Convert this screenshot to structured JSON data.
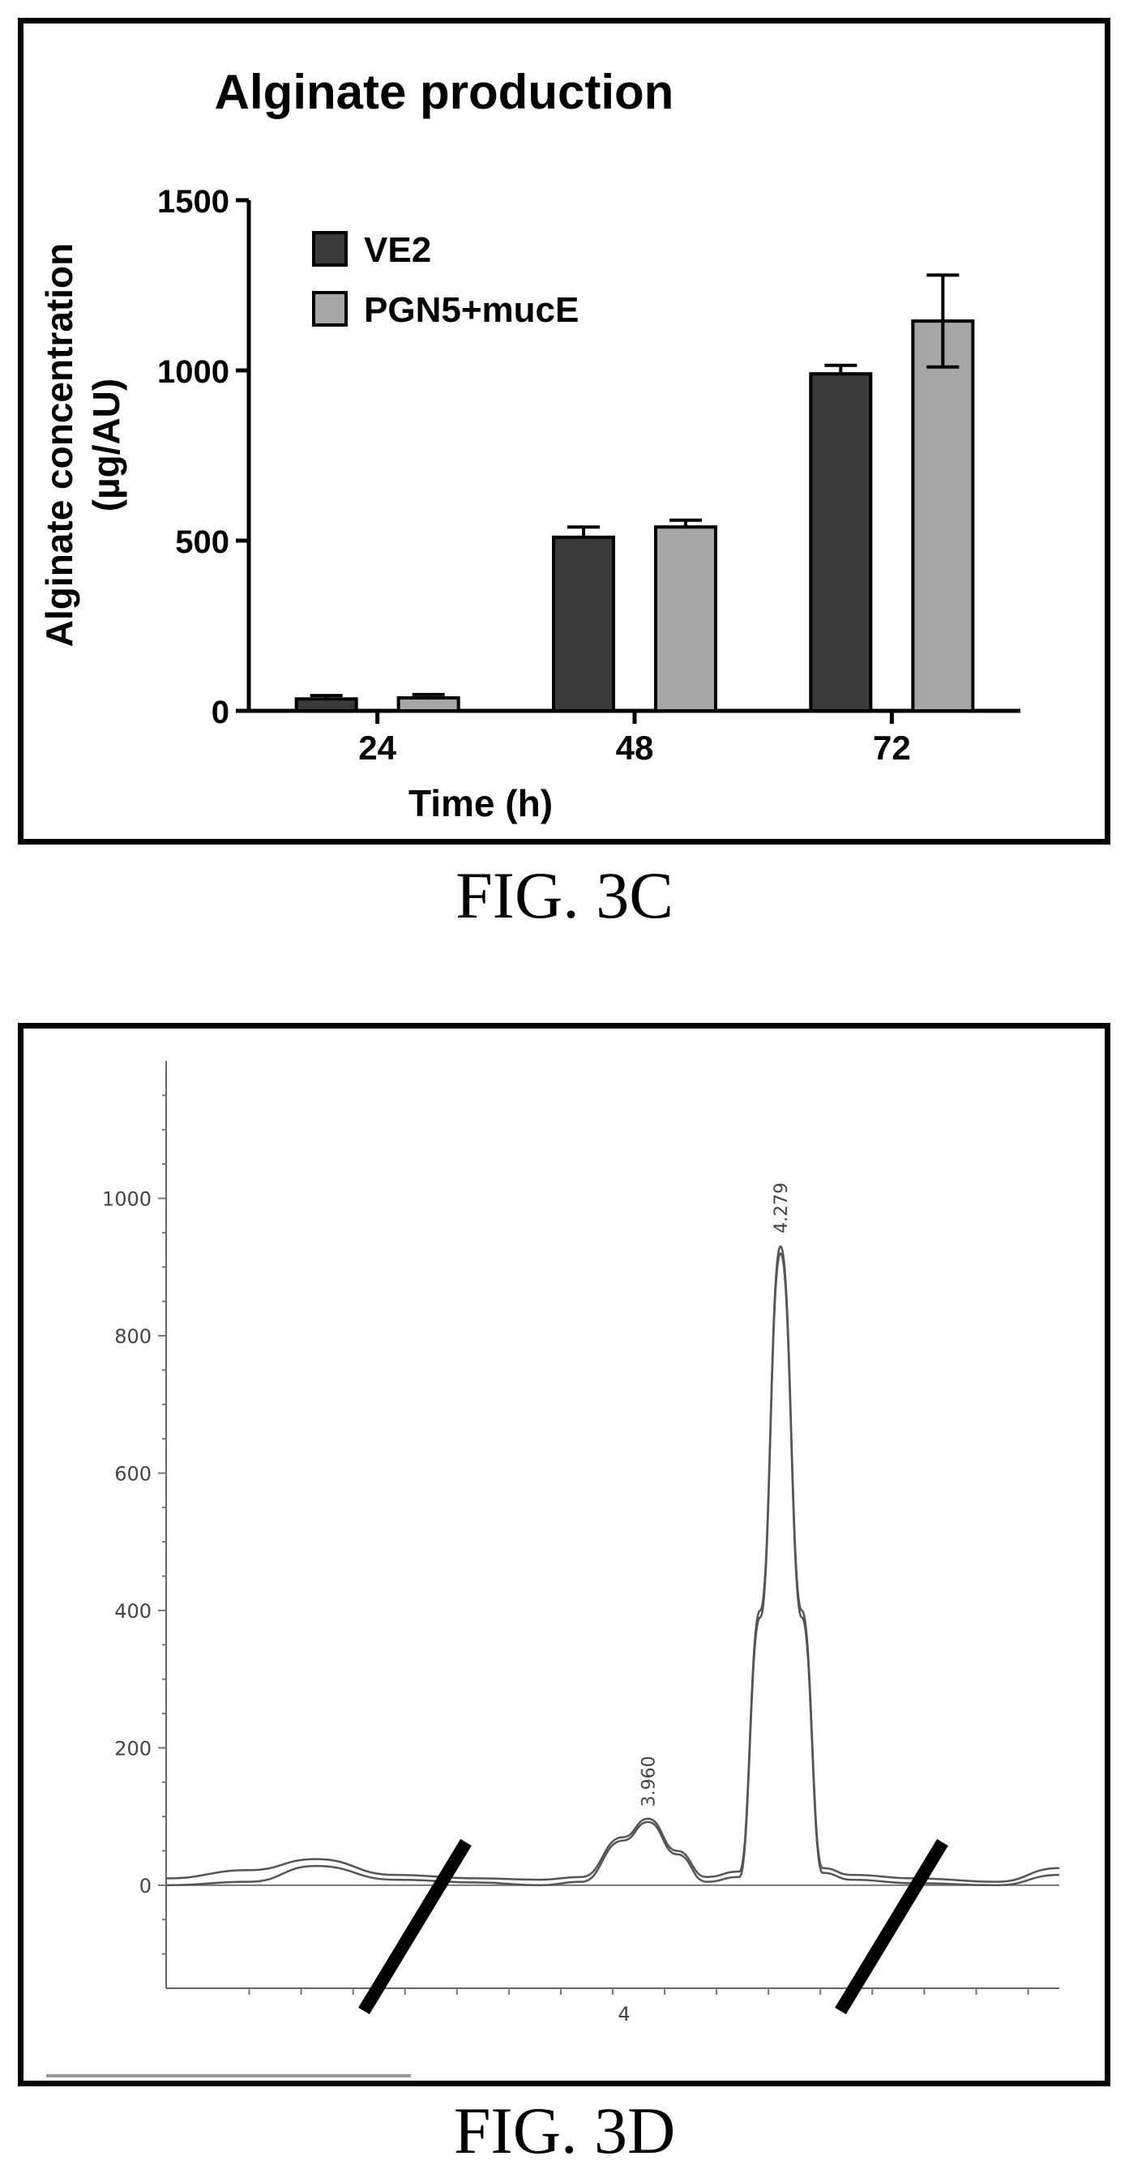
{
  "figures": [
    {
      "caption": "FIG. 3C",
      "chart_data": {
        "type": "bar",
        "title": "Alginate production",
        "xlabel": "Time (h)",
        "ylabel": "Alginate concentration (µg/AU)",
        "ylabel_lines": [
          "Alginate concentration",
          "(µg/AU)"
        ],
        "categories": [
          "24",
          "48",
          "72"
        ],
        "ylim": [
          0,
          1500
        ],
        "yticks": [
          0,
          500,
          1000,
          1500
        ],
        "legend_position": "top-left",
        "grid": false,
        "series": [
          {
            "name": "VE2",
            "color": "#3a3a3a",
            "values": [
              35,
              510,
              990
            ],
            "errors": [
              10,
              30,
              25
            ]
          },
          {
            "name": "PGN5+mucE",
            "color": "#a6a6a6",
            "values": [
              38,
              540,
              1145
            ],
            "errors": [
              10,
              20,
              135
            ]
          }
        ]
      }
    },
    {
      "caption": "FIG. 3D",
      "chart_data": {
        "type": "line",
        "ylim": [
          -150,
          1200
        ],
        "yticks": [
          0,
          200,
          400,
          600,
          800,
          1000
        ],
        "xlim": [
          2.8,
          4.95
        ],
        "xticks": [
          4
        ],
        "grid": false,
        "peak_labels": [
          {
            "text": "3.960",
            "x": 3.96,
            "y": 95
          },
          {
            "text": "4.279",
            "x": 4.279,
            "y": 930
          }
        ],
        "series": [
          {
            "name": "",
            "color": "#555555",
            "points": [
              [
                2.8,
                10
              ],
              [
                3.0,
                22
              ],
              [
                3.16,
                38
              ],
              [
                3.35,
                15
              ],
              [
                3.55,
                10
              ],
              [
                3.7,
                8
              ],
              [
                3.8,
                12
              ],
              [
                3.9,
                70
              ],
              [
                3.96,
                97
              ],
              [
                4.03,
                50
              ],
              [
                4.1,
                12
              ],
              [
                4.18,
                20
              ],
              [
                4.23,
                400
              ],
              [
                4.279,
                930
              ],
              [
                4.33,
                400
              ],
              [
                4.38,
                25
              ],
              [
                4.45,
                15
              ],
              [
                4.6,
                10
              ],
              [
                4.8,
                5
              ],
              [
                4.95,
                25
              ]
            ]
          },
          {
            "name": "",
            "color": "#555555",
            "points": [
              [
                2.8,
                0
              ],
              [
                3.0,
                5
              ],
              [
                3.16,
                28
              ],
              [
                3.35,
                8
              ],
              [
                3.55,
                4
              ],
              [
                3.7,
                0
              ],
              [
                3.8,
                5
              ],
              [
                3.9,
                65
              ],
              [
                3.96,
                92
              ],
              [
                4.03,
                45
              ],
              [
                4.1,
                5
              ],
              [
                4.18,
                12
              ],
              [
                4.23,
                390
              ],
              [
                4.279,
                920
              ],
              [
                4.33,
                390
              ],
              [
                4.38,
                18
              ],
              [
                4.45,
                8
              ],
              [
                4.6,
                3
              ],
              [
                4.8,
                0
              ],
              [
                4.95,
                15
              ]
            ]
          }
        ]
      }
    }
  ]
}
